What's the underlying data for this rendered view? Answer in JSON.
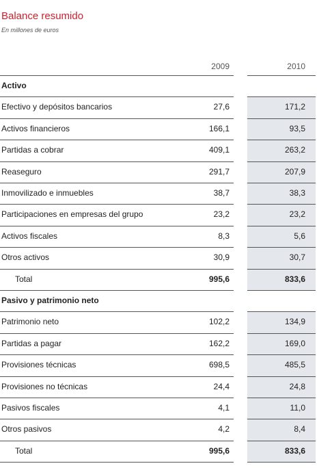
{
  "title": "Balance resumido",
  "subtitle": "En millones de euros",
  "columns": [
    "2009",
    "2010"
  ],
  "sections": [
    {
      "heading": "Activo",
      "rows": [
        {
          "label": "Efectivo y depósitos bancarios",
          "values": [
            "27,6",
            "171,2"
          ]
        },
        {
          "label": "Activos financieros",
          "values": [
            "166,1",
            "93,5"
          ]
        },
        {
          "label": "Partidas a cobrar",
          "values": [
            "409,1",
            "263,2"
          ]
        },
        {
          "label": "Reaseguro",
          "values": [
            "291,7",
            "207,9"
          ]
        },
        {
          "label": "Inmovilizado e inmuebles",
          "values": [
            "38,7",
            "38,3"
          ]
        },
        {
          "label": "Participaciones en empresas del grupo",
          "values": [
            "23,2",
            "23,2"
          ]
        },
        {
          "label": "Activos fiscales",
          "values": [
            "8,3",
            "5,6"
          ]
        },
        {
          "label": "Otros activos",
          "values": [
            "30,9",
            "30,7"
          ]
        }
      ],
      "total": {
        "label": "Total",
        "values": [
          "995,6",
          "833,6"
        ]
      }
    },
    {
      "heading": "Pasivo y patrimonio neto",
      "rows": [
        {
          "label": "Patrimonio neto",
          "values": [
            "102,2",
            "134,9"
          ]
        },
        {
          "label": "Partidas a pagar",
          "values": [
            "162,2",
            "169,0"
          ]
        },
        {
          "label": "Provisiones técnicas",
          "values": [
            "698,5",
            "485,5"
          ]
        },
        {
          "label": "Provisiones no técnicas",
          "values": [
            "24,4",
            "24,8"
          ]
        },
        {
          "label": "Pasivos fiscales",
          "values": [
            "4,1",
            "11,0"
          ]
        },
        {
          "label": "Otros pasivos",
          "values": [
            "4,2",
            "8,4"
          ]
        }
      ],
      "total": {
        "label": "Total",
        "values": [
          "995,6",
          "833,6"
        ]
      }
    }
  ]
}
